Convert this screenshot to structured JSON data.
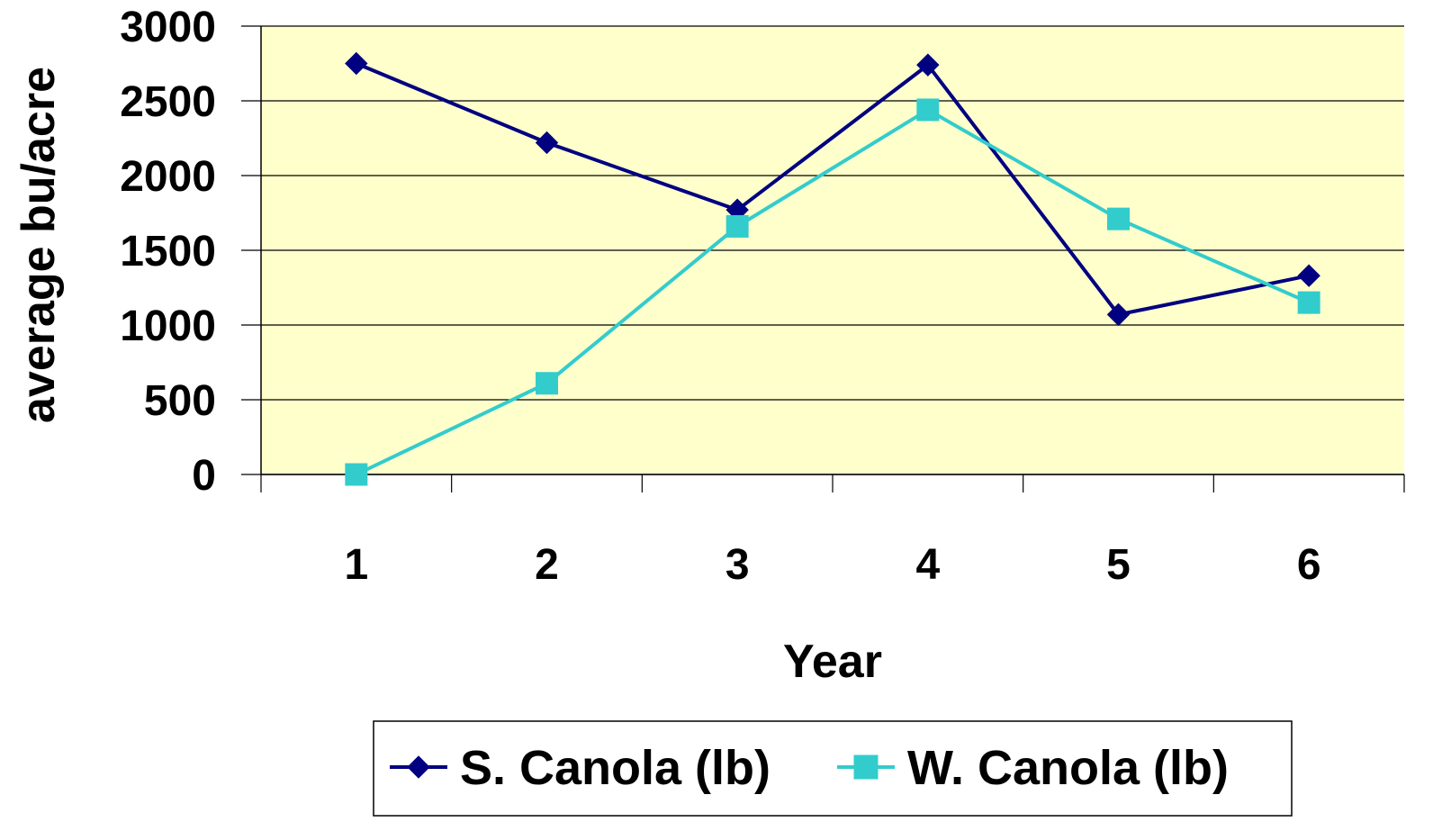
{
  "chart_data": {
    "type": "line",
    "categories": [
      "1",
      "2",
      "3",
      "4",
      "5",
      "6"
    ],
    "title": "",
    "xlabel": "Year",
    "ylabel": "average bu/acre",
    "ylim": [
      0,
      3000
    ],
    "yticks": [
      "0",
      "500",
      "1000",
      "1500",
      "2000",
      "2500",
      "3000"
    ],
    "grid": "horizontal",
    "plot_background": "#FFFFCC",
    "legend_position": "bottom",
    "series": [
      {
        "name": "S. Canola (lb)",
        "color": "#000080",
        "marker": "diamond",
        "values": [
          2750,
          2220,
          1770,
          2740,
          1070,
          1330
        ]
      },
      {
        "name": "W. Canola (lb)",
        "color": "#33CCCC",
        "marker": "square",
        "values": [
          0,
          610,
          1660,
          2440,
          1710,
          1150
        ]
      }
    ]
  }
}
